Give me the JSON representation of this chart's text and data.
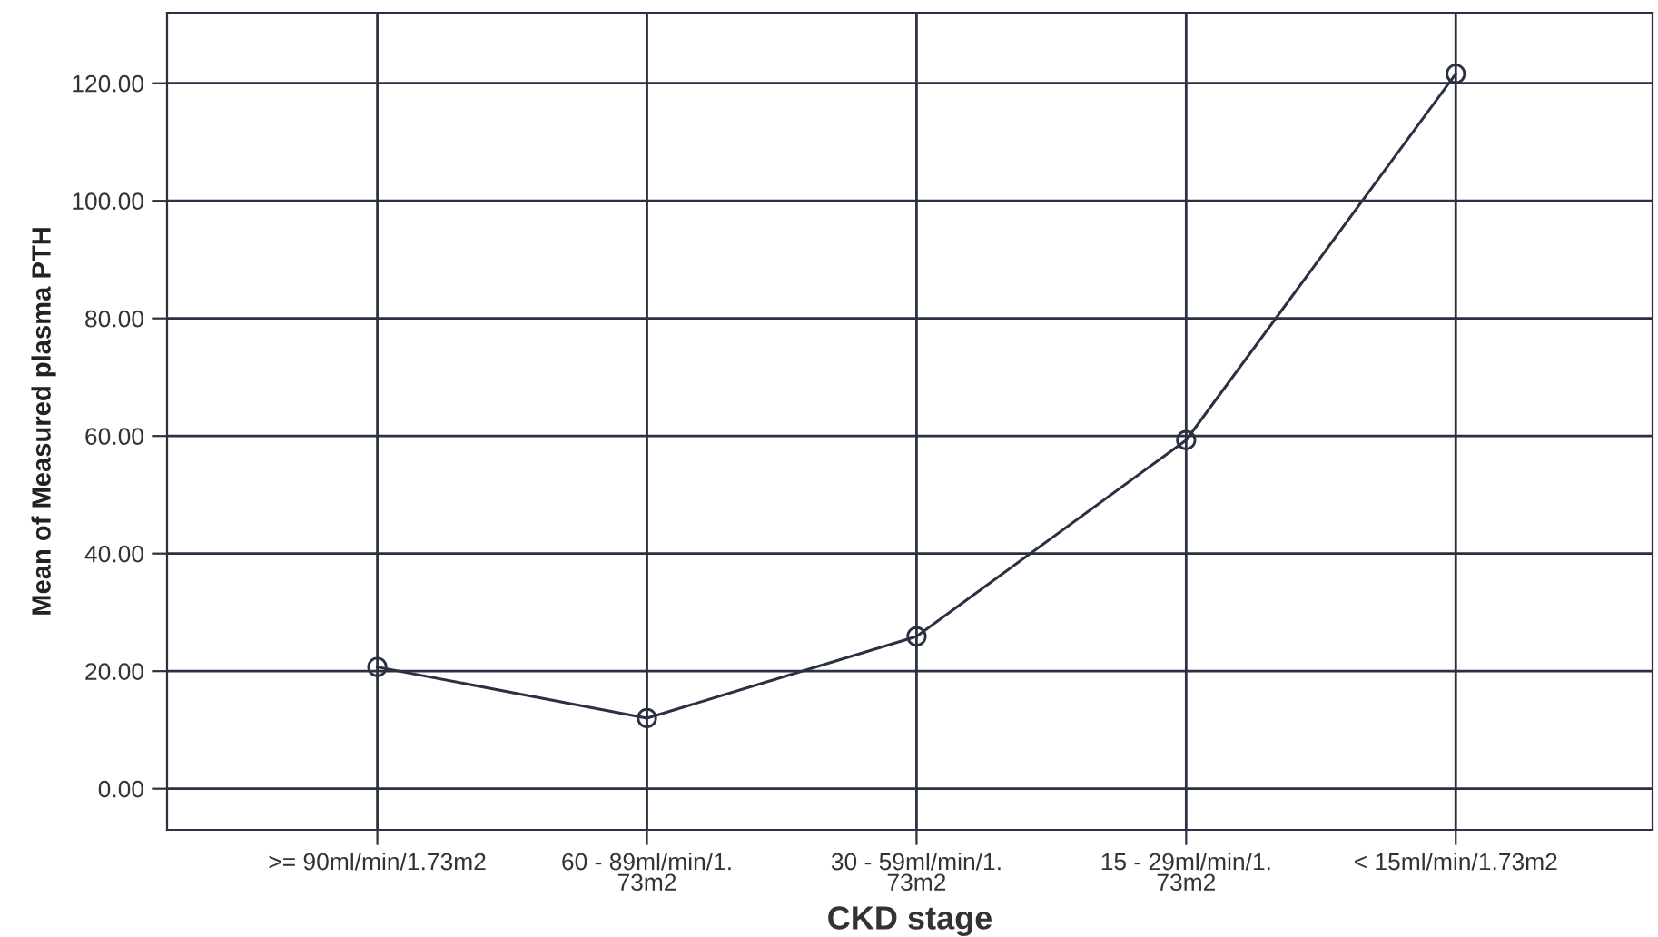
{
  "chart_data": {
    "type": "line",
    "xlabel": "CKD stage",
    "ylabel": "Mean of Measured plasma PTH",
    "categories": [
      ">= 90ml/min/1.73m2",
      "60 - 89ml/min/1.\n73m2",
      "30 - 59ml/min/1.\n73m2",
      "15 - 29ml/min/1.\n73m2",
      "< 15ml/min/1.73m2"
    ],
    "series": [
      {
        "color": "#2b3142",
        "values": [
          20.7,
          12.0,
          25.9,
          59.3,
          121.6
        ]
      }
    ],
    "marker": "circle",
    "line_style": "solid",
    "ylim": [
      -7,
      132
    ],
    "yticks": [
      {
        "value": 0,
        "label": "0.00"
      },
      {
        "value": 20,
        "label": "20.00"
      },
      {
        "value": 40,
        "label": "40.00"
      },
      {
        "value": 60,
        "label": "60.00"
      },
      {
        "value": 80,
        "label": "80.00"
      },
      {
        "value": 100,
        "label": "100.00"
      },
      {
        "value": 120,
        "label": "120.00"
      }
    ],
    "grid": true
  }
}
